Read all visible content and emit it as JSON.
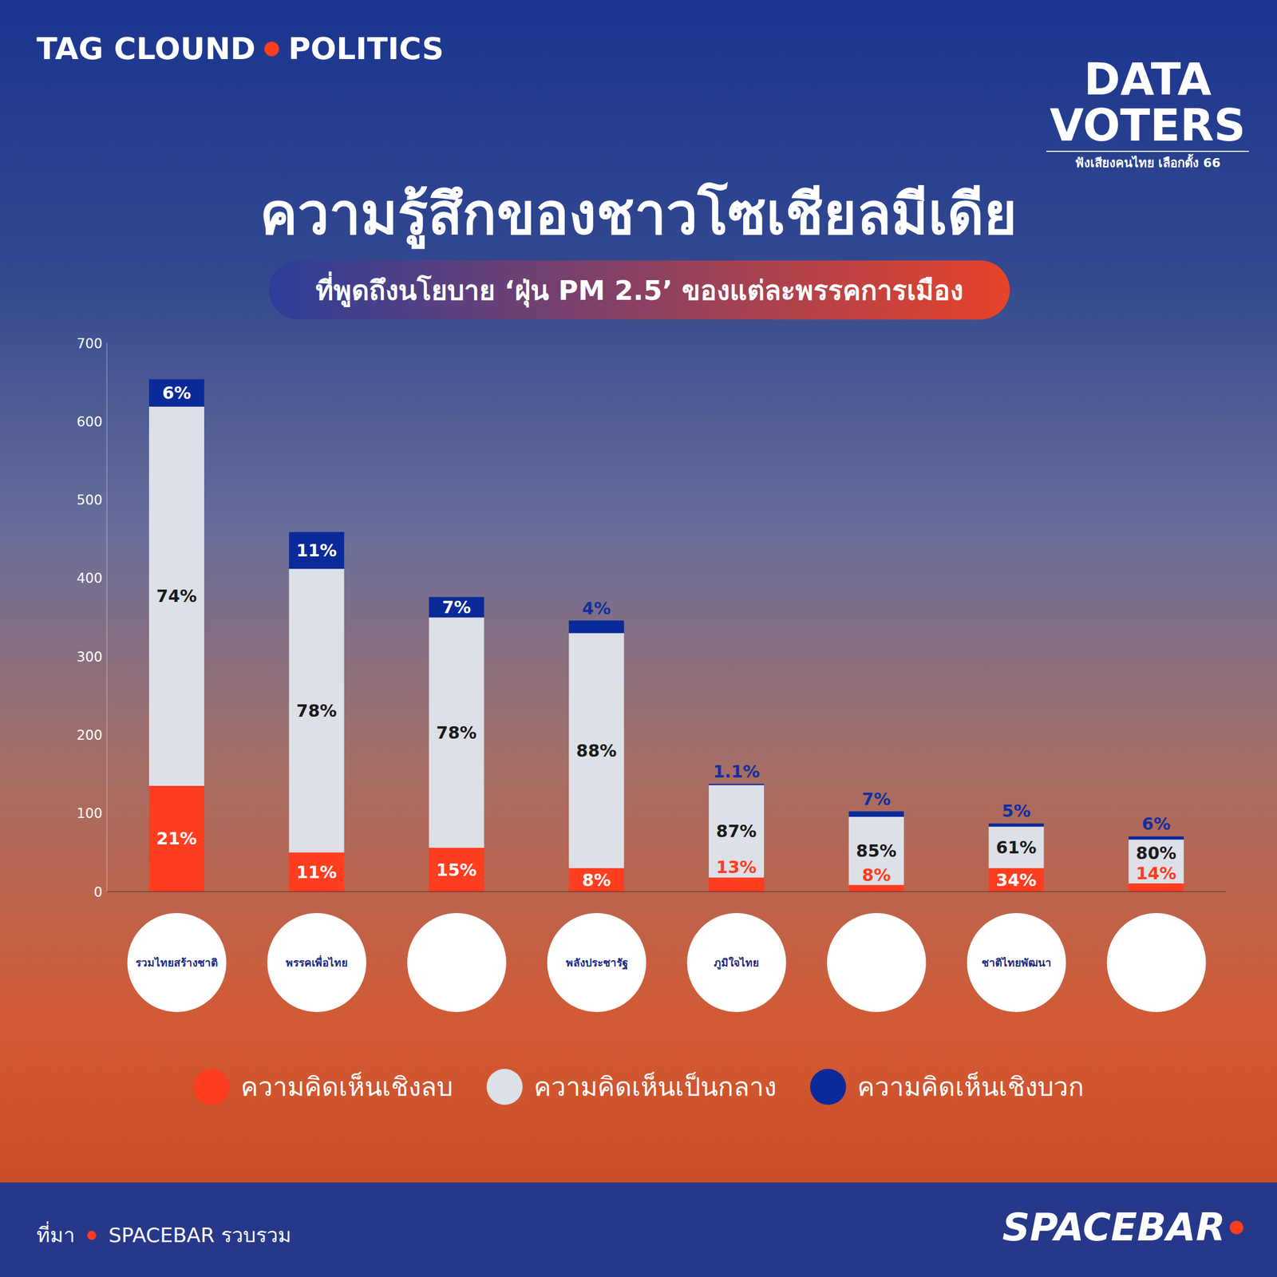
{
  "header": {
    "left": "TAG CLOUND",
    "right": "POLITICS"
  },
  "badge": {
    "line1": "DATA",
    "line2": "VOTERS",
    "caption": "ฟังเสียงคนไทย เลือกตั้ง 66"
  },
  "footer": {
    "source_label": "ที่มา",
    "source": "SPACEBAR รวบรวม",
    "brand": "SPACEBAR"
  },
  "chart_data": {
    "type": "bar",
    "title": "ความรู้สึกของชาวโซเชียลมีเดีย",
    "subtitle": "ที่พูดถึงนโยบาย ‘ฝุ่น PM 2.5’ ของแต่ละพรรคการเมือง",
    "categories": [
      "รวมไทยสร้างชาติ",
      "พรรคเพื่อไทย",
      null,
      "พลังประชารัฐ",
      "ภูมิใจไทย",
      null,
      "ชาติไทยพัฒนา",
      null
    ],
    "stacked": true,
    "grid": false,
    "legend": "bottom",
    "ylim": [
      0,
      700
    ],
    "yticks": [
      0,
      100,
      200,
      300,
      400,
      500,
      600,
      700
    ],
    "series": [
      {
        "name": "ความคิดเห็นเชิงลบ",
        "color": "#ff3d1f",
        "values": [
          135,
          50,
          56,
          30,
          18,
          8.5,
          30,
          10.5
        ],
        "percent_labels": [
          "21%",
          "11%",
          "15%",
          "8%",
          "13%",
          "8%",
          "34%",
          "14%"
        ]
      },
      {
        "name": "ความคิดเห็นเป็นกลาง",
        "color": "#dde0e6",
        "values": [
          484,
          362,
          294,
          300,
          118,
          87,
          53,
          56
        ],
        "percent_labels": [
          "74%",
          "78%",
          "78%",
          "88%",
          "87%",
          "85%",
          "61%",
          "80%"
        ]
      },
      {
        "name": "ความคิดเห็นเชิงบวก",
        "color": "#0a2a9a",
        "values": [
          35,
          47,
          26,
          16,
          1.5,
          7,
          4,
          4
        ],
        "percent_labels": [
          "6%",
          "11%",
          "7%",
          "4%",
          "1.1%",
          "7%",
          "5%",
          "6%"
        ]
      }
    ]
  }
}
